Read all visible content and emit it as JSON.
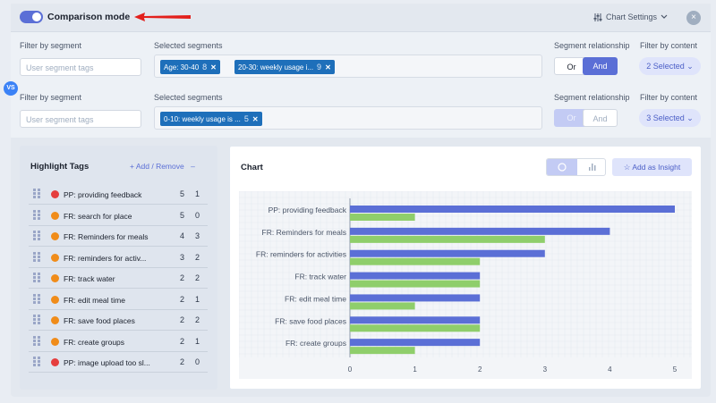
{
  "header": {
    "comparison_mode_label": "Comparison mode",
    "chart_settings_label": "Chart Settings",
    "close_icon": "×"
  },
  "filters": {
    "filter_by_segment_label": "Filter by segment",
    "selected_segments_label": "Selected segments",
    "segment_relationship_label": "Segment relationship",
    "filter_by_content_label": "Filter by content",
    "segment_input_placeholder": "User segment tags",
    "or_label": "Or",
    "and_label": "And",
    "vs_label": "VS",
    "row1": {
      "chips": [
        {
          "label": "Age: 30-40",
          "count": "8"
        },
        {
          "label": "20-30: weekly usage i...",
          "count": "9"
        }
      ],
      "relationship_selected": "And",
      "content_selected": "2 Selected"
    },
    "row2": {
      "chips": [
        {
          "label": "0-10: weekly usage is ...",
          "count": "5"
        }
      ],
      "relationship_selected": "Or",
      "content_selected": "3 Selected"
    }
  },
  "highlight_tags": {
    "title": "Highlight Tags",
    "add_remove_label": "+ Add / Remove",
    "collapse_label": "–",
    "items": [
      {
        "label": "PP: providing feedback",
        "n1": "5",
        "n2": "1",
        "color": "#e53e3e"
      },
      {
        "label": "FR: search for place",
        "n1": "5",
        "n2": "0",
        "color": "#f08c1a"
      },
      {
        "label": "FR: Reminders for meals",
        "n1": "4",
        "n2": "3",
        "color": "#f08c1a"
      },
      {
        "label": "FR: reminders for activ...",
        "n1": "3",
        "n2": "2",
        "color": "#f08c1a"
      },
      {
        "label": "FR: track water",
        "n1": "2",
        "n2": "2",
        "color": "#f08c1a"
      },
      {
        "label": "FR: edit meal time",
        "n1": "2",
        "n2": "1",
        "color": "#f08c1a"
      },
      {
        "label": "FR: save food places",
        "n1": "2",
        "n2": "2",
        "color": "#f08c1a"
      },
      {
        "label": "FR: create groups",
        "n1": "2",
        "n2": "1",
        "color": "#f08c1a"
      },
      {
        "label": "PP: image upload too sl...",
        "n1": "2",
        "n2": "0",
        "color": "#e53e3e"
      }
    ]
  },
  "chart_panel": {
    "title": "Chart",
    "add_insight_label": "Add as Insight"
  },
  "chart_data": {
    "type": "bar",
    "orientation": "horizontal",
    "categories": [
      "PP: providing feedback",
      "FR: Reminders for meals",
      "FR: reminders for activities",
      "FR: track water",
      "FR: edit meal time",
      "FR: save food places",
      "FR: create groups"
    ],
    "series": [
      {
        "color": "#5b6fd6",
        "values": [
          5,
          4,
          3,
          2,
          2,
          2,
          2
        ]
      },
      {
        "color": "#8fce6b",
        "values": [
          1,
          3,
          2,
          2,
          1,
          2,
          1
        ]
      }
    ],
    "xlim": [
      0,
      5
    ],
    "xticks": [
      "0",
      "1",
      "2",
      "3",
      "4",
      "5"
    ],
    "grid": true
  }
}
